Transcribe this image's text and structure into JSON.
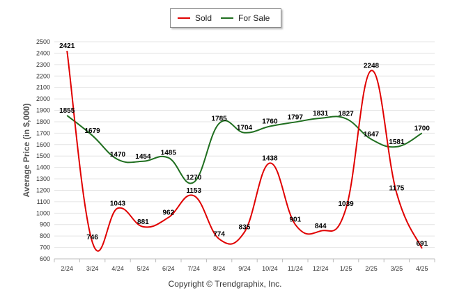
{
  "chart_data": {
    "type": "line",
    "categories": [
      "2/24",
      "3/24",
      "4/24",
      "5/24",
      "6/24",
      "7/24",
      "8/24",
      "9/24",
      "10/24",
      "11/24",
      "12/24",
      "1/25",
      "2/25",
      "3/25",
      "4/25"
    ],
    "series": [
      {
        "name": "Sold",
        "color": "#e00000",
        "values": [
          2421,
          746,
          1043,
          881,
          962,
          1153,
          774,
          835,
          1438,
          901,
          844,
          1039,
          2248,
          1175,
          691
        ]
      },
      {
        "name": "For Sale",
        "color": "#1f6e1f",
        "values": [
          1855,
          1679,
          1470,
          1454,
          1485,
          1270,
          1785,
          1704,
          1760,
          1797,
          1831,
          1827,
          1647,
          1581,
          1700
        ]
      }
    ],
    "ylabel": "Average Price (in $,000)",
    "ylim": [
      600,
      2500
    ],
    "yticks": [
      600,
      700,
      800,
      900,
      1000,
      1100,
      1200,
      1300,
      1400,
      1500,
      1600,
      1700,
      1800,
      1900,
      2000,
      2100,
      2200,
      2300,
      2400,
      2500
    ],
    "grid": true,
    "legend": "top-center"
  },
  "footer": {
    "credit": "Copyright © Trendgraphix, Inc."
  }
}
